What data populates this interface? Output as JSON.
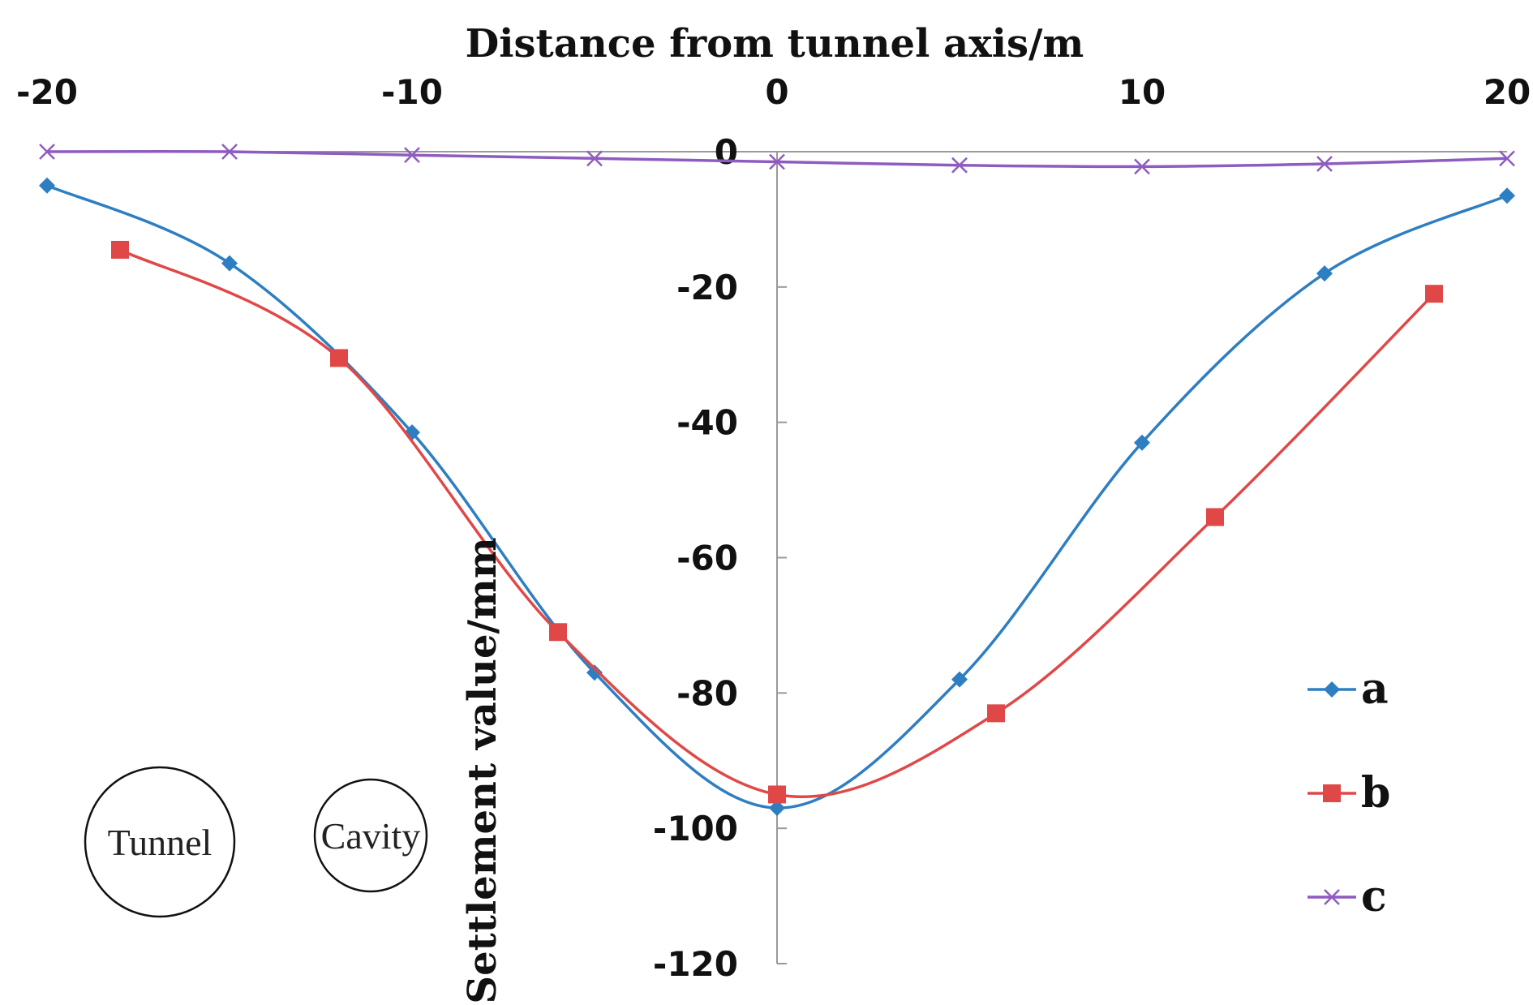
{
  "chart_data": {
    "type": "line",
    "title": "",
    "xlabel": "Distance from tunnel axis/m",
    "ylabel": "Settlement value/mm",
    "xlim": [
      -20,
      20
    ],
    "ylim": [
      -120,
      0
    ],
    "x_ticks": [
      "-20",
      "-10",
      "0",
      "10",
      "20"
    ],
    "x_tick_values": [
      -20,
      -10,
      0,
      10,
      20
    ],
    "y_ticks": [
      "0",
      "-20",
      "-40",
      "-60",
      "-80",
      "-100",
      "-120"
    ],
    "y_tick_values": [
      0,
      -20,
      -40,
      -60,
      -80,
      -100,
      -120
    ],
    "legend_position": "bottom-right",
    "series": [
      {
        "name": "a",
        "color": "#2E7EC2",
        "marker": "diamond",
        "x": [
          -20,
          -15,
          -10,
          -5,
          0,
          5,
          10,
          15,
          20
        ],
        "y": [
          -5,
          -16.5,
          -41.5,
          -77,
          -97,
          -78,
          -43,
          -18,
          -6.5
        ]
      },
      {
        "name": "b",
        "color": "#E04848",
        "marker": "square",
        "x": [
          -18,
          -12,
          -6,
          0,
          6,
          12,
          18
        ],
        "y": [
          -14.5,
          -30.5,
          -71,
          -95,
          -83,
          -54,
          -21
        ]
      },
      {
        "name": "c",
        "color": "#8E5CC0",
        "marker": "x",
        "x": [
          -20,
          -15,
          -10,
          -5,
          0,
          5,
          10,
          15,
          20
        ],
        "y": [
          0,
          0,
          -0.5,
          -1,
          -1.5,
          -2,
          -2.2,
          -1.8,
          -1
        ]
      }
    ],
    "annotations": [
      "Tunnel",
      "Cavity"
    ]
  }
}
